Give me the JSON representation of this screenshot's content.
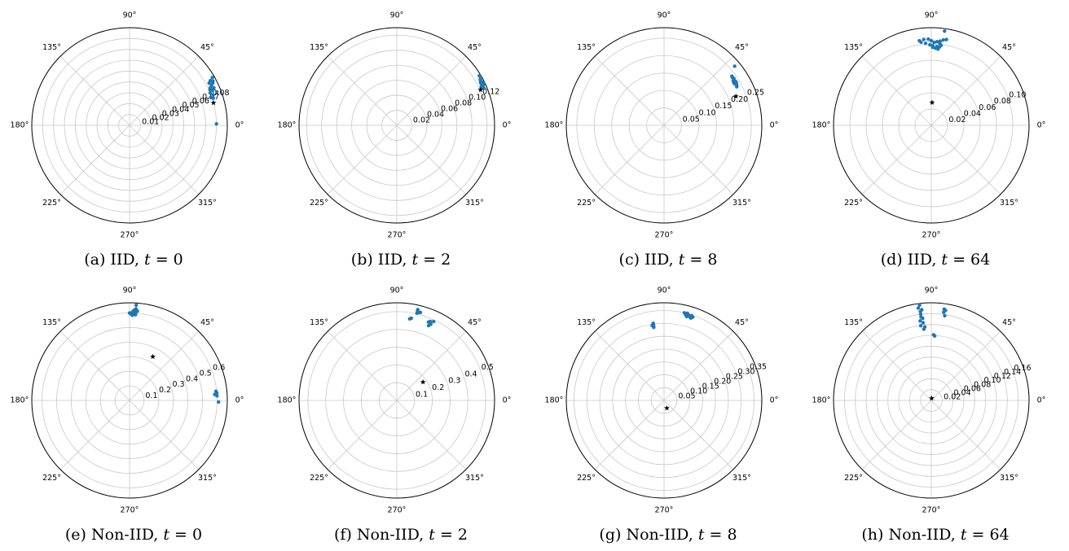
{
  "figure": {
    "angle_ticks": [
      "0°",
      "45°",
      "90°",
      "135°",
      "180°",
      "225°",
      "270°",
      "315°"
    ],
    "colors": {
      "points": "#1f77b4",
      "star": "#000000",
      "grid": "#c8c8c8",
      "frame": "#000000"
    }
  },
  "chart_data": [
    {
      "type": "scatter",
      "projection": "polar",
      "caption": {
        "prefix": "(a) IID, ",
        "var": "t",
        "rest": " = 0"
      },
      "rmax": 0.09,
      "r_ticks": [
        "0.01",
        "0.02",
        "0.03",
        "0.04",
        "0.05",
        "0.06",
        "0.07",
        "0.08"
      ],
      "r_tick_values": [
        0.01,
        0.02,
        0.03,
        0.04,
        0.05,
        0.06,
        0.07,
        0.08
      ],
      "points": [
        [
          0.088,
          30
        ],
        [
          0.087,
          28
        ],
        [
          0.086,
          27
        ],
        [
          0.085,
          29
        ],
        [
          0.084,
          26
        ],
        [
          0.083,
          28
        ],
        [
          0.082,
          25
        ],
        [
          0.083,
          23
        ],
        [
          0.081,
          24
        ],
        [
          0.08,
          22
        ],
        [
          0.082,
          20
        ],
        [
          0.079,
          19
        ],
        [
          0.081,
          18
        ],
        [
          0.085,
          24
        ],
        [
          0.086,
          21
        ],
        [
          0.08,
          1
        ]
      ],
      "star": [
        0.08,
        15
      ]
    },
    {
      "type": "scatter",
      "projection": "polar",
      "caption": {
        "prefix": "(b) IID, ",
        "var": "t",
        "rest": " = 2"
      },
      "rmax": 0.13,
      "r_ticks": [
        "0.02",
        "0.04",
        "0.06",
        "0.08",
        "0.10",
        "0.12"
      ],
      "r_tick_values": [
        0.02,
        0.04,
        0.06,
        0.08,
        0.1,
        0.12
      ],
      "points": [
        [
          0.128,
          31
        ],
        [
          0.127,
          29
        ],
        [
          0.126,
          28
        ],
        [
          0.127,
          27
        ],
        [
          0.125,
          27
        ],
        [
          0.128,
          26
        ],
        [
          0.126,
          26
        ],
        [
          0.124,
          25
        ],
        [
          0.127,
          25
        ],
        [
          0.125,
          24
        ],
        [
          0.123,
          24
        ],
        [
          0.126,
          23
        ]
      ],
      "star": [
        0.121,
        23
      ]
    },
    {
      "type": "scatter",
      "projection": "polar",
      "caption": {
        "prefix": "(c) IID, ",
        "var": "t",
        "rest": " = 8"
      },
      "rmax": 0.28,
      "r_ticks": [
        "0.05",
        "0.10",
        "0.15",
        "0.20",
        "0.25"
      ],
      "r_tick_values": [
        0.05,
        0.1,
        0.15,
        0.2,
        0.25
      ],
      "points": [
        [
          0.264,
          40
        ],
        [
          0.24,
          36
        ],
        [
          0.239,
          35
        ],
        [
          0.241,
          34
        ],
        [
          0.238,
          33
        ],
        [
          0.236,
          33
        ],
        [
          0.24,
          32
        ],
        [
          0.237,
          31
        ],
        [
          0.235,
          32
        ],
        [
          0.239,
          30
        ],
        [
          0.241,
          31
        ],
        [
          0.236,
          30
        ],
        [
          0.234,
          31
        ],
        [
          0.238,
          29
        ],
        [
          0.236,
          28
        ]
      ],
      "star": [
        0.222,
        22
      ]
    },
    {
      "type": "scatter",
      "projection": "polar",
      "caption": {
        "prefix": "(d) IID, ",
        "var": "t",
        "rest": " = 64"
      },
      "rmax": 0.12,
      "r_ticks": [
        "0.02",
        "0.04",
        "0.06",
        "0.08",
        "0.10"
      ],
      "r_tick_values": [
        0.02,
        0.04,
        0.06,
        0.08,
        0.1
      ],
      "points": [
        [
          0.117,
          82
        ],
        [
          0.106,
          82
        ],
        [
          0.107,
          80
        ],
        [
          0.104,
          84
        ],
        [
          0.103,
          86
        ],
        [
          0.101,
          84
        ],
        [
          0.099,
          83
        ],
        [
          0.097,
          86
        ],
        [
          0.098,
          89
        ],
        [
          0.102,
          88
        ],
        [
          0.104,
          90
        ],
        [
          0.106,
          92
        ],
        [
          0.106,
          95
        ],
        [
          0.105,
          98
        ],
        [
          0.103,
          97
        ],
        [
          0.101,
          94
        ],
        [
          0.099,
          91
        ],
        [
          0.096,
          89
        ],
        [
          0.095,
          87
        ],
        [
          0.094,
          85
        ],
        [
          0.097,
          84
        ]
      ],
      "star": [
        0.028,
        88
      ]
    },
    {
      "type": "scatter",
      "projection": "polar",
      "caption": {
        "prefix": "(e) Non-IID, ",
        "var": "t",
        "rest": " = 0"
      },
      "rmax": 0.67,
      "r_ticks": [
        "0.1",
        "0.2",
        "0.3",
        "0.4",
        "0.5",
        "0.6"
      ],
      "r_tick_values": [
        0.1,
        0.2,
        0.3,
        0.4,
        0.5,
        0.6
      ],
      "points": [
        [
          0.655,
          86
        ],
        [
          0.63,
          86
        ],
        [
          0.62,
          87
        ],
        [
          0.61,
          88
        ],
        [
          0.605,
          86
        ],
        [
          0.598,
          87
        ],
        [
          0.592,
          89
        ],
        [
          0.59,
          86
        ],
        [
          0.615,
          85
        ],
        [
          0.6,
          90
        ],
        [
          0.585,
          88
        ],
        [
          0.6,
          5
        ],
        [
          0.595,
          6
        ],
        [
          0.6,
          3
        ],
        [
          0.585,
          4
        ],
        [
          0.61,
          -1
        ]
      ],
      "star": [
        0.34,
        62
      ]
    },
    {
      "type": "scatter",
      "projection": "polar",
      "caption": {
        "prefix": "(f) Non-IID, ",
        "var": "t",
        "rest": " = 2"
      },
      "rmax": 0.55,
      "r_ticks": [
        "0.1",
        "0.2",
        "0.3",
        "0.4",
        "0.5"
      ],
      "r_tick_values": [
        0.1,
        0.2,
        0.3,
        0.4,
        0.5
      ],
      "points": [
        [
          0.525,
          77
        ],
        [
          0.518,
          77
        ],
        [
          0.511,
          76
        ],
        [
          0.504,
          77
        ],
        [
          0.513,
          75
        ],
        [
          0.483,
          67
        ],
        [
          0.476,
          68
        ],
        [
          0.47,
          66
        ],
        [
          0.49,
          65
        ],
        [
          0.458,
          67
        ],
        [
          0.47,
          80
        ],
        [
          0.465,
          81
        ]
      ],
      "star": [
        0.18,
        35
      ]
    },
    {
      "type": "scatter",
      "projection": "polar",
      "caption": {
        "prefix": "(g) Non-IID, ",
        "var": "t",
        "rest": " = 8"
      },
      "rmax": 0.38,
      "r_ticks": [
        "0.05",
        "0.10",
        "0.15",
        "0.20",
        "0.25",
        "0.30",
        "0.35"
      ],
      "r_tick_values": [
        0.05,
        0.1,
        0.15,
        0.2,
        0.25,
        0.3,
        0.35
      ],
      "points": [
        [
          0.35,
          77
        ],
        [
          0.345,
          76
        ],
        [
          0.346,
          74
        ],
        [
          0.341,
          73
        ],
        [
          0.347,
          72
        ],
        [
          0.337,
          72
        ],
        [
          0.351,
          75
        ],
        [
          0.343,
          71
        ],
        [
          0.338,
          75
        ],
        [
          0.303,
          98
        ],
        [
          0.298,
          98
        ],
        [
          0.292,
          98
        ],
        [
          0.287,
          98
        ],
        [
          0.295,
          99
        ]
      ],
      "star": [
        0.032,
        290
      ]
    },
    {
      "type": "scatter",
      "projection": "polar",
      "caption": {
        "prefix": "(h) Non-IID, ",
        "var": "t",
        "rest": " = 64"
      },
      "rmax": 0.18,
      "r_ticks": [
        "0.02",
        "0.04",
        "0.06",
        "0.08",
        "0.10",
        "0.12",
        "0.14",
        "0.16"
      ],
      "r_tick_values": [
        0.02,
        0.04,
        0.06,
        0.08,
        0.1,
        0.12,
        0.14,
        0.16
      ],
      "points": [
        [
          0.177,
          97
        ],
        [
          0.172,
          98
        ],
        [
          0.168,
          96
        ],
        [
          0.165,
          97
        ],
        [
          0.16,
          97
        ],
        [
          0.155,
          97
        ],
        [
          0.152,
          96
        ],
        [
          0.148,
          98
        ],
        [
          0.144,
          96
        ],
        [
          0.139,
          98
        ],
        [
          0.136,
          95
        ],
        [
          0.132,
          96
        ],
        [
          0.17,
          82
        ],
        [
          0.168,
          81
        ],
        [
          0.164,
          82
        ],
        [
          0.158,
          81
        ],
        [
          0.121,
          88
        ],
        [
          0.119,
          87
        ]
      ],
      "star": [
        0.004,
        80
      ]
    }
  ]
}
